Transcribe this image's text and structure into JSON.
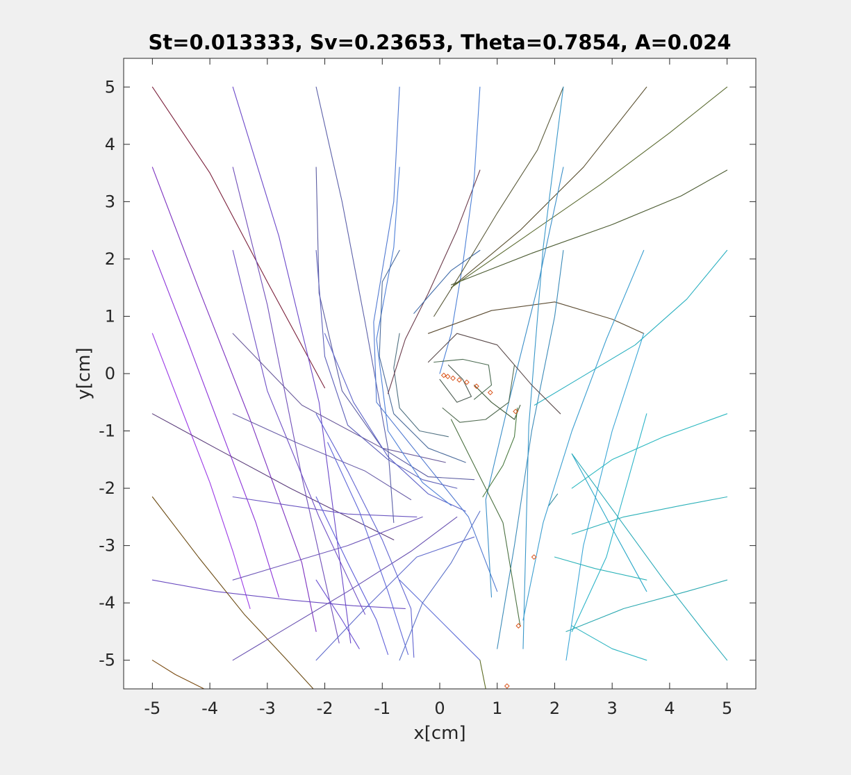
{
  "chart_data": {
    "type": "line",
    "title": "St=0.013333, Sv=0.23653, Theta=0.7854, A=0.024",
    "xlabel": "x[cm]",
    "ylabel": "y[cm]",
    "xlim": [
      -5.5,
      5.5
    ],
    "ylim": [
      -5.5,
      5.5
    ],
    "xticks": [
      -5,
      -4,
      -3,
      -2,
      -1,
      0,
      1,
      2,
      3,
      4,
      5
    ],
    "yticks": [
      -5,
      -4,
      -3,
      -2,
      -1,
      0,
      1,
      2,
      3,
      4,
      5
    ],
    "xtick_labels": [
      "-5",
      "-4",
      "-3",
      "-2",
      "-1",
      "0",
      "1",
      "2",
      "3",
      "4",
      "5"
    ],
    "ytick_labels": [
      "-5",
      "-4",
      "-3",
      "-2",
      "-1",
      "0",
      "1",
      "2",
      "3",
      "4",
      "5"
    ],
    "grid": false,
    "box": true,
    "marker_color": "#d95319",
    "series": [
      {
        "color": "#7a1f3a",
        "x": [
          -5.0,
          -4.0,
          -3.0,
          -2.0
        ],
        "y": [
          5.0,
          3.5,
          1.6,
          -0.25
        ]
      },
      {
        "color": "#7b2fbf",
        "x": [
          -5.0,
          -4.2,
          -3.3,
          -2.4,
          -2.15
        ],
        "y": [
          3.6,
          1.5,
          -0.8,
          -3.3,
          -4.5
        ]
      },
      {
        "color": "#8b32d9",
        "x": [
          -5.0,
          -4.4,
          -3.8,
          -3.2,
          -2.8
        ],
        "y": [
          2.15,
          0.6,
          -1.0,
          -2.6,
          -3.9
        ]
      },
      {
        "color": "#9a38e6",
        "x": [
          -5.0,
          -4.5,
          -4.0,
          -3.6,
          -3.3
        ],
        "y": [
          0.7,
          -0.6,
          -1.9,
          -3.1,
          -4.1
        ]
      },
      {
        "color": "#5a3b7a",
        "x": [
          -5.0,
          -3.9,
          -2.6,
          -1.6,
          -0.8
        ],
        "y": [
          -0.7,
          -1.3,
          -2.0,
          -2.5,
          -2.9
        ]
      },
      {
        "color": "#6a4bc0",
        "x": [
          -5.0,
          -3.9,
          -2.6,
          -1.5,
          -0.6
        ],
        "y": [
          -3.6,
          -3.8,
          -3.95,
          -4.05,
          -4.1
        ]
      },
      {
        "color": "#6b4a12",
        "x": [
          -5.0,
          -4.2,
          -3.4,
          -2.7,
          -2.2
        ],
        "y": [
          -2.15,
          -3.2,
          -4.2,
          -4.95,
          -5.5
        ]
      },
      {
        "color": "#7a4a10",
        "x": [
          -5.0,
          -4.6,
          -4.1
        ],
        "y": [
          -5.0,
          -5.25,
          -5.5
        ]
      },
      {
        "color": "#6a46c8",
        "x": [
          -3.6,
          -2.8,
          -2.1,
          -1.55
        ],
        "y": [
          5.0,
          2.4,
          -0.5,
          -4.7
        ]
      },
      {
        "color": "#6f4db8",
        "x": [
          -3.6,
          -3.0,
          -2.4,
          -1.75
        ],
        "y": [
          3.6,
          1.2,
          -1.8,
          -4.7
        ]
      },
      {
        "color": "#6e4ec4",
        "x": [
          -3.6,
          -3.0,
          -2.1,
          -1.3
        ],
        "y": [
          2.15,
          -0.3,
          -2.5,
          -4.2
        ]
      },
      {
        "color": "#6a5a9a",
        "x": [
          -3.6,
          -2.4,
          -1.0,
          0.1
        ],
        "y": [
          0.7,
          -0.55,
          -1.3,
          -1.55
        ]
      },
      {
        "color": "#6b5fa8",
        "x": [
          -3.6,
          -2.5,
          -1.3,
          -0.5
        ],
        "y": [
          -0.7,
          -1.2,
          -1.7,
          -2.2
        ]
      },
      {
        "color": "#6a55c0",
        "x": [
          -3.6,
          -2.6,
          -1.6,
          -0.4
        ],
        "y": [
          -2.15,
          -2.3,
          -2.45,
          -2.5
        ]
      },
      {
        "color": "#6d55b8",
        "x": [
          -3.6,
          -2.6,
          -1.6,
          -0.3
        ],
        "y": [
          -3.6,
          -3.3,
          -3.0,
          -2.5
        ]
      },
      {
        "color": "#6850b0",
        "x": [
          -3.6,
          -2.6,
          -1.6,
          -0.5,
          0.3
        ],
        "y": [
          -5.0,
          -4.4,
          -3.8,
          -3.1,
          -2.5
        ]
      },
      {
        "color": "#6a4fd0",
        "x": [
          -2.15,
          -1.7,
          -1.4
        ],
        "y": [
          -3.6,
          -4.3,
          -4.8
        ]
      },
      {
        "color": "#5b5fa8",
        "x": [
          -2.15,
          -1.7,
          -1.3,
          -0.9,
          -0.8
        ],
        "y": [
          5.0,
          3.0,
          0.9,
          -1.3,
          -2.6
        ]
      },
      {
        "color": "#5a5ba0",
        "x": [
          -2.15,
          -2.1,
          -1.7,
          -1.0,
          -0.2,
          0.6
        ],
        "y": [
          3.6,
          1.4,
          -0.3,
          -1.3,
          -1.8,
          -1.85
        ]
      },
      {
        "color": "#5c5fb8",
        "x": [
          -2.15,
          -2.0,
          -1.6,
          -0.9,
          -0.3,
          0.3
        ],
        "y": [
          2.15,
          0.3,
          -0.9,
          -1.5,
          -1.85,
          -2.0
        ]
      },
      {
        "color": "#5e64c8",
        "x": [
          -2.0,
          -1.5,
          -0.9,
          -0.2,
          0.45
        ],
        "y": [
          0.7,
          -0.5,
          -1.45,
          -2.1,
          -2.4
        ]
      },
      {
        "color": "#5f62d0",
        "x": [
          -2.15,
          -1.6,
          -1.0,
          -0.5,
          -0.45
        ],
        "y": [
          -0.7,
          -1.7,
          -2.9,
          -4.1,
          -4.95
        ]
      },
      {
        "color": "#5e66d8",
        "x": [
          -1.95,
          -1.4,
          -0.9,
          -0.55
        ],
        "y": [
          -1.2,
          -2.4,
          -3.8,
          -4.9
        ]
      },
      {
        "color": "#5f5fd8",
        "x": [
          -2.15,
          -1.6,
          -1.1,
          -0.9
        ],
        "y": [
          -2.15,
          -3.3,
          -4.3,
          -4.9
        ]
      },
      {
        "color": "#5f6acc",
        "x": [
          -2.15,
          -1.3,
          -0.4,
          0.6
        ],
        "y": [
          -5.0,
          -4.1,
          -3.2,
          -2.85
        ]
      },
      {
        "color": "#5f6fd8",
        "x": [
          -0.7,
          -0.2,
          0.3,
          0.7
        ],
        "y": [
          -3.6,
          -4.1,
          -4.6,
          -5.0
        ]
      },
      {
        "color": "#5a70c8",
        "x": [
          -0.7,
          -0.3,
          0.2,
          0.7
        ],
        "y": [
          -5.0,
          -4.0,
          -3.3,
          -2.4
        ]
      },
      {
        "color": "#4f78d0",
        "x": [
          -0.7,
          -0.8,
          -1.15,
          -1.1,
          -0.3,
          0.5,
          1.0
        ],
        "y": [
          5.0,
          3.0,
          0.9,
          -0.5,
          -1.5,
          -2.5,
          -3.8
        ]
      },
      {
        "color": "#4d7fd8",
        "x": [
          -0.7,
          -0.8,
          -1.1,
          -0.9,
          -0.3,
          0.2
        ],
        "y": [
          3.6,
          2.2,
          0.6,
          -1.0,
          -1.9,
          -2.3
        ]
      },
      {
        "color": "#4a6a9a",
        "x": [
          -0.7,
          -1.0,
          -1.05,
          -0.8,
          -0.2,
          0.45
        ],
        "y": [
          2.15,
          1.6,
          0.3,
          -0.7,
          -1.3,
          -1.55
        ]
      },
      {
        "color": "#4f7080",
        "x": [
          -0.7,
          -0.8,
          -0.7,
          -0.35,
          0.15
        ],
        "y": [
          0.7,
          0.1,
          -0.6,
          -1.0,
          -1.1
        ]
      },
      {
        "color": "#6b3a4a",
        "x": [
          -0.9,
          -0.6,
          -0.2,
          0.3,
          0.7
        ],
        "y": [
          -0.35,
          0.6,
          1.4,
          2.5,
          3.55
        ]
      },
      {
        "color": "#4a7fd6",
        "x": [
          0.7,
          0.6,
          0.4,
          0.2,
          0.0
        ],
        "y": [
          5.0,
          3.4,
          1.9,
          0.7,
          0.0
        ]
      },
      {
        "color": "#3d6aa8",
        "x": [
          -0.45,
          -0.15,
          0.2,
          0.7
        ],
        "y": [
          1.05,
          1.4,
          1.8,
          2.15
        ]
      },
      {
        "color": "#5a5a3a",
        "x": [
          -0.1,
          0.4,
          1.0,
          1.7,
          2.15
        ],
        "y": [
          1.0,
          1.8,
          2.8,
          3.9,
          5.0
        ]
      },
      {
        "color": "#5a4a30",
        "x": [
          -0.2,
          0.9,
          2.0,
          3.0,
          3.55
        ],
        "y": [
          0.7,
          1.1,
          1.25,
          0.95,
          0.7
        ]
      },
      {
        "color": "#5a5030",
        "x": [
          0.2,
          1.4,
          2.5,
          3.6
        ],
        "y": [
          1.5,
          2.5,
          3.6,
          5.0
        ]
      },
      {
        "color": "#4a5a30",
        "x": [
          0.2,
          1.6,
          3.0,
          4.2,
          5.0
        ],
        "y": [
          1.55,
          2.1,
          2.6,
          3.1,
          3.55
        ]
      },
      {
        "color": "#5a6a30",
        "x": [
          0.2,
          1.5,
          2.8,
          4.0,
          5.0
        ],
        "y": [
          1.5,
          2.4,
          3.3,
          4.2,
          5.0
        ]
      },
      {
        "color": "#3a8ab8",
        "x": [
          1.0,
          1.3,
          1.6,
          2.0,
          2.15
        ],
        "y": [
          -4.8,
          -3.0,
          -1.0,
          1.0,
          2.15
        ]
      },
      {
        "color": "#3a8ec8",
        "x": [
          2.15,
          1.7,
          1.2,
          0.8,
          0.9
        ],
        "y": [
          3.6,
          1.5,
          -0.5,
          -2.2,
          -3.9
        ]
      },
      {
        "color": "#3896c8",
        "x": [
          2.15,
          1.8,
          1.55,
          1.45
        ],
        "y": [
          5.0,
          2.2,
          -0.9,
          -4.8
        ]
      },
      {
        "color": "#3a9ed0",
        "x": [
          3.55,
          2.9,
          2.3,
          1.8,
          1.45
        ],
        "y": [
          2.15,
          0.6,
          -1.0,
          -2.6,
          -4.3
        ]
      },
      {
        "color": "#3aa6d6",
        "x": [
          3.55,
          3.0,
          2.5,
          2.2
        ],
        "y": [
          0.7,
          -1.0,
          -3.0,
          -5.0
        ]
      },
      {
        "color": "#2ab0c0",
        "x": [
          1.65,
          2.4,
          3.4,
          4.3,
          5.0
        ],
        "y": [
          -0.55,
          -0.1,
          0.5,
          1.3,
          2.15
        ]
      },
      {
        "color": "#2aa8c8",
        "x": [
          2.3,
          3.0,
          3.6
        ],
        "y": [
          -1.4,
          -2.7,
          -3.8
        ]
      },
      {
        "color": "#2cb4c8",
        "x": [
          2.3,
          2.9,
          3.6
        ],
        "y": [
          -4.5,
          -3.2,
          -0.7
        ]
      },
      {
        "color": "#2cb8c0",
        "x": [
          2.3,
          3.0,
          3.9,
          5.0
        ],
        "y": [
          -2.0,
          -1.5,
          -1.1,
          -0.7
        ]
      },
      {
        "color": "#2bb0b8",
        "x": [
          2.3,
          3.2,
          4.2,
          5.0
        ],
        "y": [
          -2.8,
          -2.5,
          -2.3,
          -2.15
        ]
      },
      {
        "color": "#2ab2b8",
        "x": [
          2.0,
          2.7,
          3.6
        ],
        "y": [
          -3.2,
          -3.4,
          -3.6
        ]
      },
      {
        "color": "#2aa8b0",
        "x": [
          2.2,
          3.2,
          4.3,
          5.0
        ],
        "y": [
          -4.5,
          -4.1,
          -3.8,
          -3.6
        ]
      },
      {
        "color": "#2ab4c0",
        "x": [
          2.3,
          3.0,
          3.6
        ],
        "y": [
          -4.4,
          -4.8,
          -5.0
        ]
      },
      {
        "color": "#2aaab8",
        "x": [
          2.3,
          3.1,
          3.9,
          4.6,
          5.0
        ],
        "y": [
          -1.4,
          -2.5,
          -3.6,
          -4.5,
          -5.0
        ]
      },
      {
        "color": "#4a5a50",
        "x": [
          0.0,
          0.3,
          0.55,
          0.4,
          0.15
        ],
        "y": [
          -0.1,
          -0.5,
          -0.4,
          -0.1,
          0.15
        ]
      },
      {
        "color": "#5a4a4a",
        "x": [
          -0.2,
          0.3,
          1.0,
          1.6,
          2.1
        ],
        "y": [
          0.2,
          0.7,
          0.5,
          -0.2,
          -0.7
        ]
      },
      {
        "color": "#4a6a50",
        "x": [
          0.6,
          0.9,
          0.85,
          0.4,
          -0.1
        ],
        "y": [
          -0.45,
          -0.2,
          0.15,
          0.25,
          0.2
        ]
      },
      {
        "color": "#506a50",
        "x": [
          1.3,
          1.2,
          0.8,
          0.35,
          0.05
        ],
        "y": [
          0.15,
          -0.5,
          -0.8,
          -0.85,
          -0.6
        ]
      },
      {
        "color": "#4a7040",
        "x": [
          0.2,
          0.7,
          1.1,
          1.3,
          1.4
        ],
        "y": [
          -0.8,
          -1.8,
          -2.6,
          -3.8,
          -4.4
        ]
      },
      {
        "color": "#405a38",
        "x": [
          0.6,
          0.9,
          1.3,
          1.4
        ],
        "y": [
          -0.2,
          -0.5,
          -0.8,
          -0.55
        ]
      },
      {
        "color": "#4a7a40",
        "x": [
          1.35,
          1.3,
          1.1,
          0.75
        ],
        "y": [
          -0.6,
          -1.1,
          -1.6,
          -2.15
        ]
      },
      {
        "color": "#2f8a9a",
        "x": [
          2.05,
          1.9
        ],
        "y": [
          -2.1,
          -2.3
        ]
      },
      {
        "color": "#5a6a20",
        "x": [
          0.7,
          0.8
        ],
        "y": [
          -5.0,
          -5.5
        ]
      }
    ],
    "markers": {
      "x": [
        0.07,
        0.14,
        0.23,
        0.34,
        0.47,
        0.64,
        0.88,
        1.32,
        1.64,
        1.37,
        1.17
      ],
      "y": [
        -0.03,
        -0.05,
        -0.08,
        -0.11,
        -0.15,
        -0.22,
        -0.33,
        -0.66,
        -3.2,
        -4.4,
        -5.45
      ]
    }
  }
}
